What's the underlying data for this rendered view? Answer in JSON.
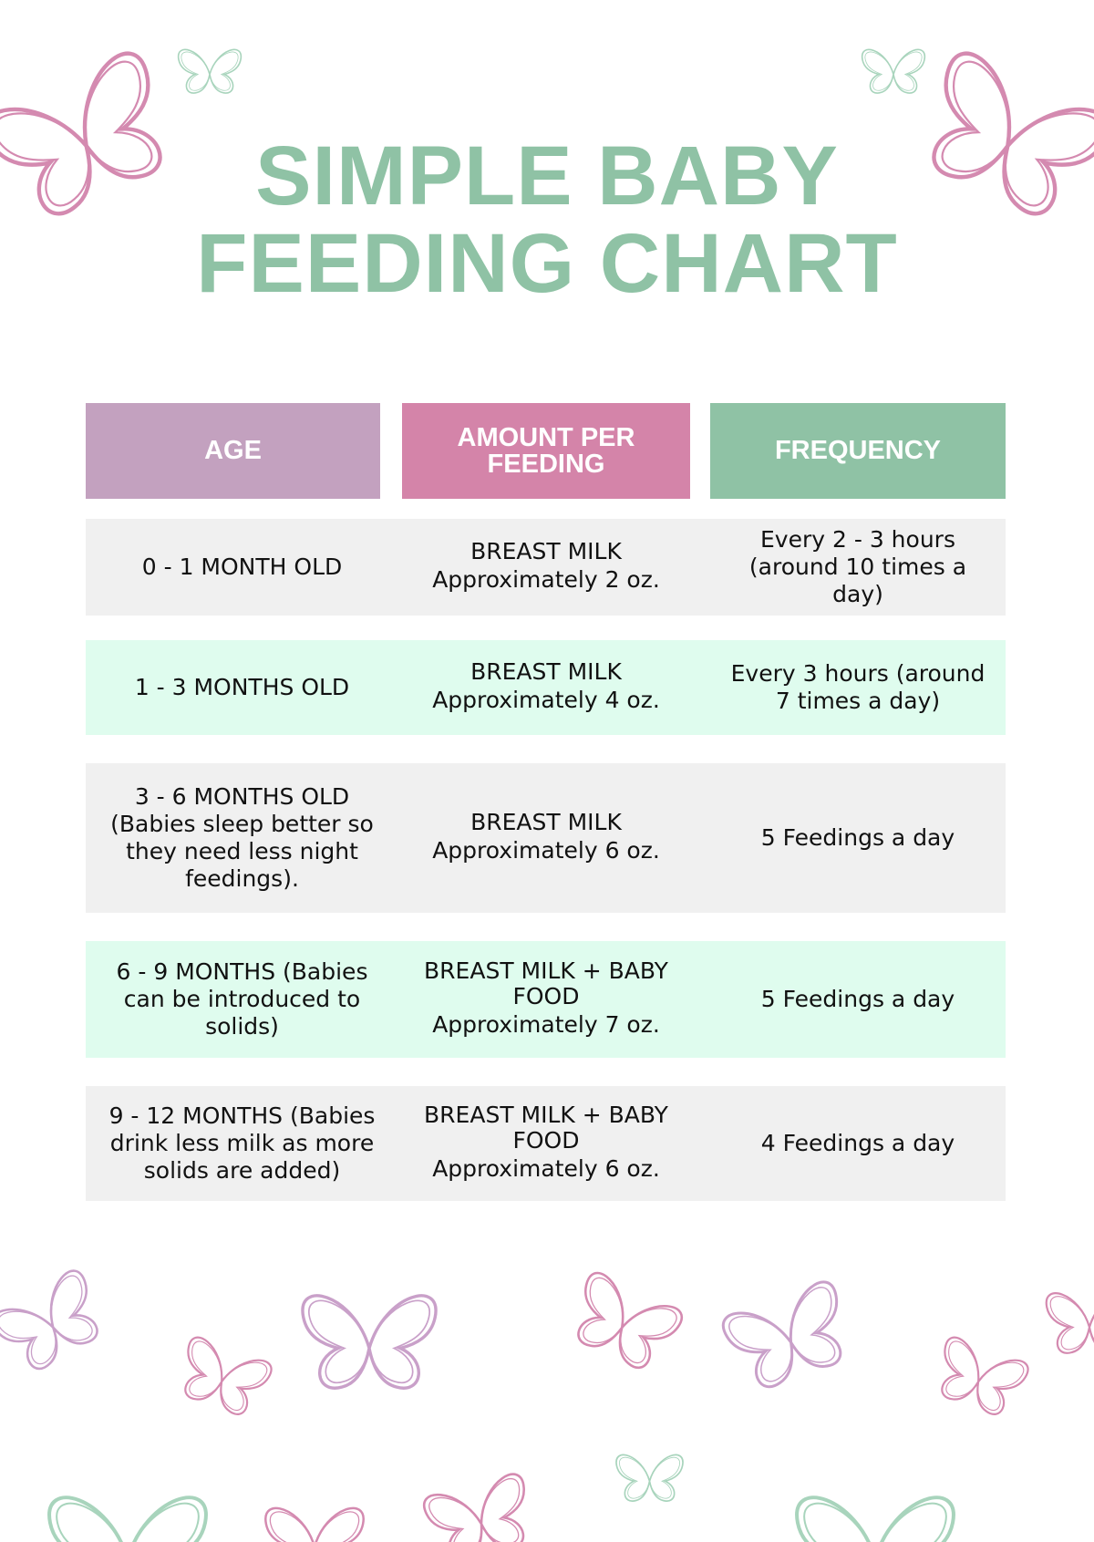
{
  "header": {
    "title": "SIMPLE BABY FEEDING CHART"
  },
  "table": {
    "columns": [
      "AGE",
      "AMOUNT PER FEEDING",
      "FREQUENCY"
    ],
    "rows": [
      {
        "age": "0 - 1 MONTH OLD",
        "food": "BREAST MILK",
        "amount": "Approximately 2 oz.",
        "frequency": "Every 2 - 3 hours (around 10 times a day)"
      },
      {
        "age": "1 - 3 MONTHS OLD",
        "food": "BREAST MILK",
        "amount": "Approximately 4 oz.",
        "frequency": "Every 3 hours (around 7 times a day)"
      },
      {
        "age": "3 - 6 MONTHS OLD (Babies sleep better so they need less night feedings).",
        "food": "BREAST MILK",
        "amount": "Approximately 6 oz.",
        "frequency": "5 Feedings a day"
      },
      {
        "age": "6 - 9 MONTHS (Babies can be introduced to solids)",
        "food": "BREAST MILK + BABY FOOD",
        "amount": "Approximately 7 oz.",
        "frequency": "5 Feedings a day"
      },
      {
        "age": "9 - 12 MONTHS (Babies drink less milk as more solids are added)",
        "food": "BREAST MILK + BABY FOOD",
        "amount": "Approximately 6 oz.",
        "frequency": "4 Feedings a day"
      }
    ]
  }
}
